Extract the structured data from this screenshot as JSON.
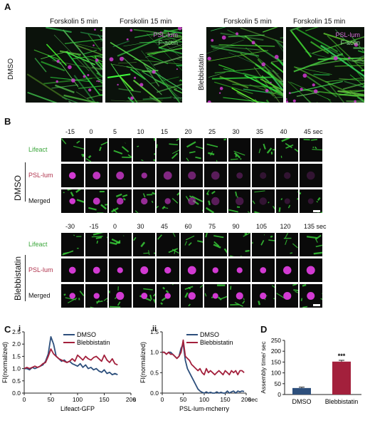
{
  "panelA": {
    "letter": "A",
    "groups": [
      {
        "condition": "DMSO",
        "cols": [
          "Forskolin 5 min",
          "Forskolin 15 min"
        ],
        "legend": [
          "PSL-lum",
          "F-actin"
        ]
      },
      {
        "condition": "Blebbistatin",
        "cols": [
          "Forskolin 5 min",
          "Forskolin 15 min"
        ],
        "legend": [
          "PSL-lum",
          "F-actin"
        ]
      }
    ]
  },
  "panelB": {
    "letter": "B",
    "dmso": {
      "condition": "DMSO",
      "times": [
        "-15",
        "0",
        "5",
        "10",
        "15",
        "20",
        "25",
        "30",
        "35",
        "40",
        "45 sec"
      ],
      "rows": [
        "Lifeact",
        "PSL-lum",
        "Merged"
      ]
    },
    "blebb": {
      "condition": "Blebbistatin",
      "times": [
        "-30",
        "-15",
        "0",
        "30",
        "45",
        "60",
        "75",
        "90",
        "105",
        "120",
        "135 sec"
      ],
      "rows": [
        "Lifeact",
        "PSL-lum",
        "Merged"
      ]
    },
    "row_colors": {
      "Lifeact": "#3aa63a",
      "PSL-lum": "#b0334d",
      "Merged": "#111111"
    }
  },
  "panelC": {
    "letter": "C",
    "colors": {
      "DMSO": "#2d4f7c",
      "Blebbistatin": "#a3203c"
    },
    "chart_data": [
      {
        "sub": "i",
        "type": "line",
        "ylabel": "FI(normalized)",
        "xlabel": "Lifeact-GFP",
        "xunit": "s",
        "xlim": [
          0,
          200
        ],
        "ylim": [
          0,
          2.5
        ],
        "xticks": [
          "0",
          "50",
          "100",
          "150",
          "200"
        ],
        "yticks": [
          "0.0",
          "0.5",
          "1.0",
          "1.5",
          "2.0",
          "2.5"
        ],
        "series": [
          {
            "name": "DMSO",
            "x": [
              0,
              5,
              10,
              15,
              20,
              25,
              30,
              35,
              40,
              45,
              50,
              55,
              60,
              65,
              70,
              75,
              80,
              85,
              90,
              95,
              100,
              105,
              110,
              115,
              120,
              125,
              130,
              135,
              140,
              145,
              150,
              155,
              160,
              165,
              170,
              175
            ],
            "y": [
              1.0,
              1.0,
              0.95,
              1.05,
              1.0,
              1.05,
              1.1,
              1.15,
              1.3,
              1.6,
              2.3,
              2.0,
              1.5,
              1.4,
              1.3,
              1.35,
              1.25,
              1.3,
              1.2,
              1.15,
              1.1,
              1.2,
              1.05,
              1.15,
              1.0,
              1.05,
              0.95,
              1.0,
              0.9,
              0.85,
              0.95,
              0.8,
              0.85,
              0.75,
              0.8,
              0.75
            ]
          },
          {
            "name": "Blebbistatin",
            "x": [
              0,
              5,
              10,
              15,
              20,
              25,
              30,
              35,
              40,
              45,
              50,
              55,
              60,
              65,
              70,
              75,
              80,
              85,
              90,
              95,
              100,
              105,
              110,
              115,
              120,
              125,
              130,
              135,
              140,
              145,
              150,
              155,
              160,
              165,
              170,
              175
            ],
            "y": [
              1.0,
              1.05,
              1.0,
              1.05,
              1.1,
              1.05,
              1.1,
              1.2,
              1.25,
              1.5,
              1.8,
              1.6,
              1.5,
              1.4,
              1.35,
              1.3,
              1.25,
              1.3,
              1.4,
              1.3,
              1.55,
              1.45,
              1.35,
              1.5,
              1.4,
              1.35,
              1.45,
              1.5,
              1.4,
              1.3,
              1.55,
              1.35,
              1.25,
              1.4,
              1.2,
              1.15
            ]
          }
        ]
      },
      {
        "sub": "ii",
        "type": "line",
        "ylabel": "FI(normalized)",
        "xlabel": "PSL-lum-mcherry",
        "xunit": "sec",
        "xlim": [
          0,
          200
        ],
        "ylim": [
          0,
          1.5
        ],
        "xticks": [
          "0",
          "50",
          "100",
          "150",
          "200"
        ],
        "yticks": [
          "0.0",
          "0.5",
          "1.0",
          "1.5"
        ],
        "series": [
          {
            "name": "DMSO",
            "x": [
              0,
              5,
              10,
              15,
              20,
              25,
              30,
              35,
              40,
              45,
              50,
              55,
              60,
              65,
              70,
              75,
              80,
              85,
              90,
              95,
              100,
              105,
              110,
              115,
              120,
              125,
              130,
              135,
              140,
              145,
              150,
              155,
              160,
              165,
              170,
              175,
              180,
              185,
              190,
              195
            ],
            "y": [
              1.0,
              1.0,
              0.95,
              1.0,
              1.0,
              0.95,
              0.9,
              0.85,
              0.9,
              1.1,
              1.2,
              0.8,
              0.6,
              0.5,
              0.4,
              0.3,
              0.2,
              0.1,
              0.05,
              0.02,
              0.0,
              0.03,
              0.0,
              0.02,
              0.0,
              0.0,
              0.03,
              0.0,
              0.02,
              0.0,
              0.0,
              0.05,
              0.0,
              0.03,
              0.05,
              0.0,
              0.05,
              0.03,
              0.05,
              0.04
            ]
          },
          {
            "name": "Blebbistatin",
            "x": [
              0,
              5,
              10,
              15,
              20,
              25,
              30,
              35,
              40,
              45,
              50,
              55,
              60,
              65,
              70,
              75,
              80,
              85,
              90,
              95,
              100,
              105,
              110,
              115,
              120,
              125,
              130,
              135,
              140,
              145,
              150,
              155,
              160,
              165,
              170,
              175,
              180,
              185,
              190,
              195
            ],
            "y": [
              1.0,
              1.0,
              0.95,
              1.0,
              0.95,
              0.95,
              0.9,
              0.85,
              0.9,
              1.0,
              1.3,
              0.9,
              0.85,
              0.8,
              0.7,
              0.65,
              0.6,
              0.55,
              0.6,
              0.5,
              0.45,
              0.6,
              0.5,
              0.55,
              0.5,
              0.45,
              0.5,
              0.55,
              0.5,
              0.45,
              0.55,
              0.5,
              0.45,
              0.55,
              0.5,
              0.55,
              0.45,
              0.55,
              0.55,
              0.5
            ]
          }
        ]
      }
    ]
  },
  "panelD": {
    "letter": "D",
    "chart_data": {
      "type": "bar",
      "categories": [
        "DMSO",
        "Blebbistatin"
      ],
      "values": [
        30,
        152
      ],
      "errors": [
        4,
        6
      ],
      "ylabel": "Assembly time/ sec",
      "ylim": [
        0,
        250
      ],
      "yticks": [
        "0",
        "50",
        "100",
        "150",
        "200",
        "250"
      ],
      "colors": [
        "#2d4f7c",
        "#a3203c"
      ],
      "annotation": "***"
    }
  }
}
